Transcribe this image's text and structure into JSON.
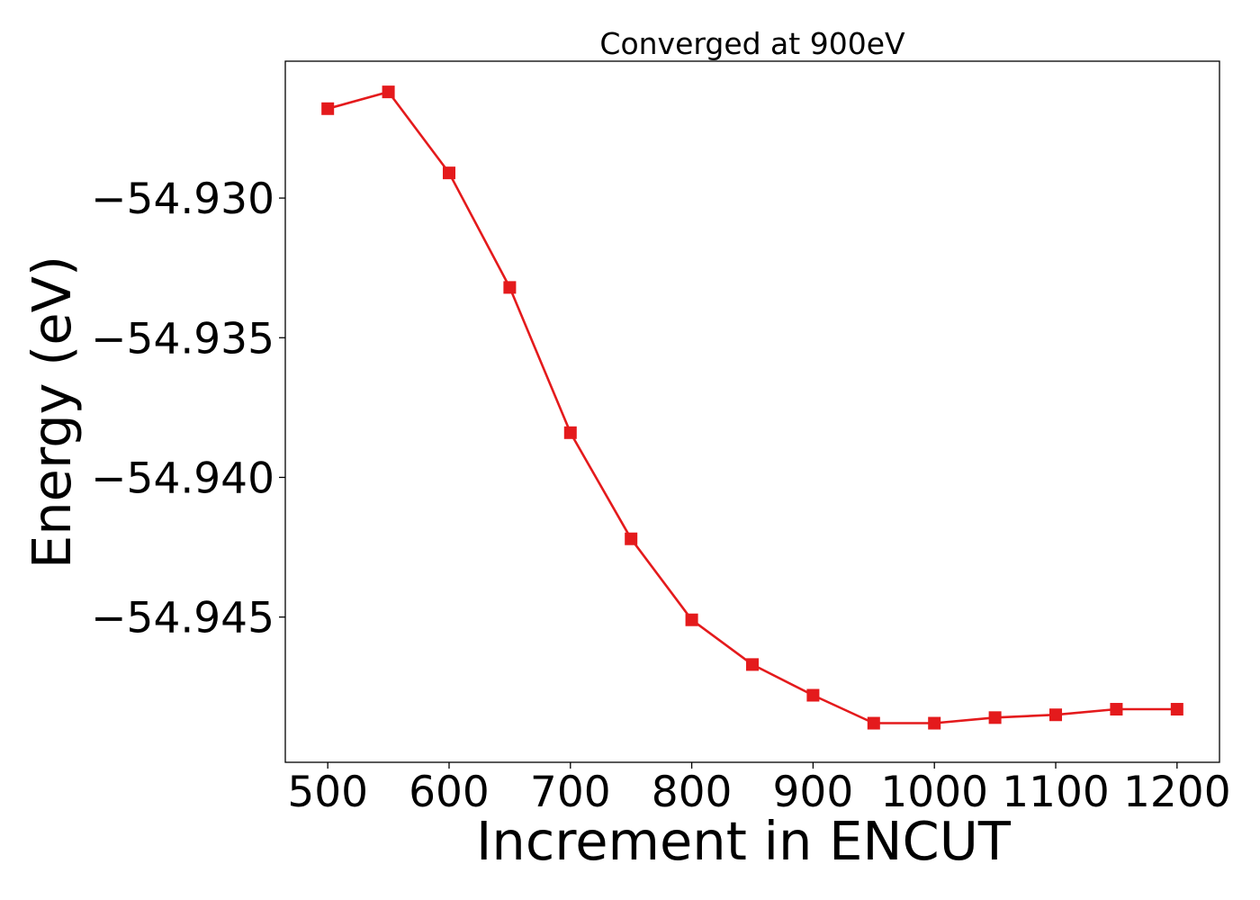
{
  "chart_data": {
    "type": "line",
    "title": "Converged at 900eV",
    "xlabel": "Increment in ENCUT",
    "ylabel": "Energy (eV)",
    "x": [
      500,
      550,
      600,
      650,
      700,
      750,
      800,
      850,
      900,
      950,
      1000,
      1050,
      1100,
      1150,
      1200
    ],
    "series": [
      {
        "values": [
          -54.9268,
          -54.9262,
          -54.9291,
          -54.9332,
          -54.9384,
          -54.9422,
          -54.9451,
          -54.9467,
          -54.9478,
          -54.9488,
          -54.9488,
          -54.9486,
          -54.9485,
          -54.9483,
          -54.9483
        ],
        "color": "#e41a1c",
        "marker": "square"
      }
    ],
    "xlim": [
      465,
      1235
    ],
    "ylim": [
      -54.9502,
      -54.9251
    ],
    "xticks": [
      500,
      600,
      700,
      800,
      900,
      1000,
      1100,
      1200
    ],
    "xtick_labels": [
      "500",
      "600",
      "700",
      "800",
      "900",
      "1000",
      "1100",
      "1200"
    ],
    "yticks": [
      -54.93,
      -54.935,
      -54.94,
      -54.945
    ],
    "ytick_labels": [
      "−54.930",
      "−54.935",
      "−54.940",
      "−54.945"
    ],
    "grid": false,
    "legend": "none"
  }
}
